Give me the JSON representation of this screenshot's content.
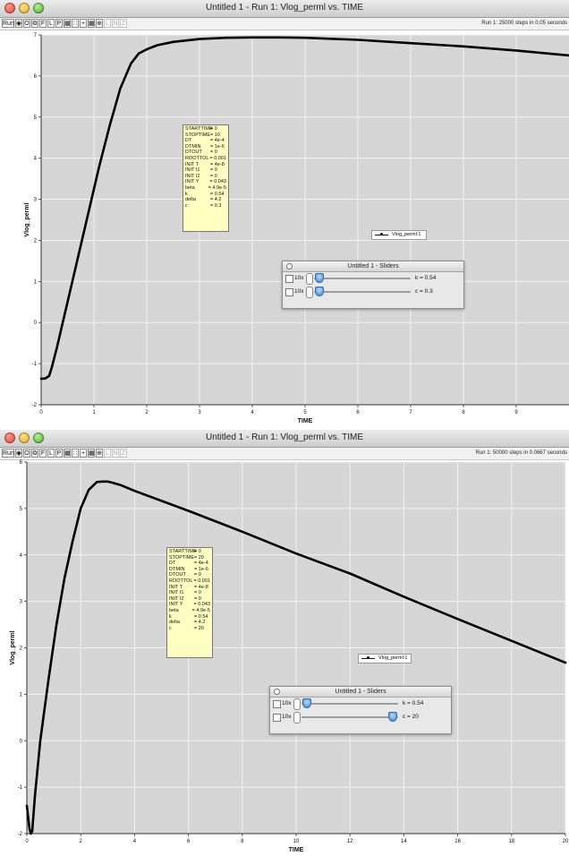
{
  "toolbar_buttons": [
    "Run",
    "",
    "O",
    "",
    "F",
    "L",
    "P",
    "",
    "",
    "",
    "",
    "",
    "",
    "",
    ""
  ],
  "windows": [
    {
      "title": "Untitled 1 - Run 1: Vlog_perml vs. TIME",
      "run_info": "Run 1: 25000 steps in 0.05 seconds",
      "params": [
        [
          "STARTTIME",
          "= 0"
        ],
        [
          "STOPTIME",
          "= 10"
        ],
        [
          "DT",
          "= 4e-4"
        ],
        [
          "DTMIN",
          "= 1e-6"
        ],
        [
          "DTOUT",
          "= 0"
        ],
        [
          "ROOTTOL",
          "= 0.001"
        ],
        [
          "INIT T",
          "= 4e-8"
        ],
        [
          "INIT I1",
          "= 0"
        ],
        [
          "INIT I2",
          "= 0"
        ],
        [
          "INIT Y",
          "= 0.043"
        ],
        [
          "beta",
          "= 4.9e-5"
        ],
        [
          "k",
          "= 0.54"
        ],
        [
          "delta",
          "= 4.2"
        ],
        [
          "c",
          "= 0.3"
        ]
      ],
      "legend": "Vlog_perml:1",
      "sliders": {
        "title": "Untitled 1 - Sliders",
        "rows": [
          {
            "multiplier": "10x",
            "label": "k = 0.54",
            "position": 0.06
          },
          {
            "multiplier": "10x",
            "label": "c = 0.3",
            "position": 0.06
          }
        ]
      }
    },
    {
      "title": "Untitled 1 - Run 1: Vlog_perml vs. TIME",
      "run_info": "Run 1: 50000 steps in 0.0667 seconds",
      "params": [
        [
          "STARTTIME",
          "= 0"
        ],
        [
          "STOPTIME",
          "= 20"
        ],
        [
          "DT",
          "= 4e-4"
        ],
        [
          "DTMIN",
          "= 1e-6"
        ],
        [
          "DTOUT",
          "= 0"
        ],
        [
          "ROOTTOL",
          "= 0.001"
        ],
        [
          "INIT T",
          "= 4e-8"
        ],
        [
          "INIT I1",
          "= 0"
        ],
        [
          "INIT I2",
          "= 0"
        ],
        [
          "INIT Y",
          "= 0.043"
        ],
        [
          "beta",
          "= 4.9e-5"
        ],
        [
          "k",
          "= 0.54"
        ],
        [
          "delta",
          "= 4.2"
        ],
        [
          "c",
          "= 20"
        ]
      ],
      "legend": "Vlog_perml:1",
      "sliders": {
        "title": "Untitled 1 - Sliders",
        "rows": [
          {
            "multiplier": "10x",
            "label": "k = 0.54",
            "position": 0.06
          },
          {
            "multiplier": "10x",
            "label": "c = 20",
            "position": 0.94
          }
        ]
      }
    }
  ],
  "chart_data": [
    {
      "type": "line",
      "xlabel": "TIME",
      "ylabel": "Vlog_perml",
      "xlim": [
        0,
        10
      ],
      "ylim": [
        -2,
        7
      ],
      "xticks": [
        0,
        1,
        2,
        3,
        4,
        5,
        6,
        7,
        8,
        9
      ],
      "yticks": [
        -2,
        -1,
        0,
        1,
        2,
        3,
        4,
        5,
        6,
        7
      ],
      "grid": true,
      "legend_position": "center-right",
      "series": [
        {
          "name": "Vlog_perml:1",
          "x": [
            0,
            0.08,
            0.15,
            0.2,
            0.3,
            0.5,
            0.7,
            0.9,
            1.1,
            1.3,
            1.5,
            1.7,
            1.85,
            2.0,
            2.2,
            2.5,
            3.0,
            3.5,
            4.0,
            4.5,
            5.0,
            6.0,
            7.0,
            8.0,
            9.0,
            10.0
          ],
          "y": [
            -1.37,
            -1.36,
            -1.3,
            -1.1,
            -0.6,
            0.5,
            1.6,
            2.7,
            3.8,
            4.8,
            5.7,
            6.3,
            6.55,
            6.65,
            6.75,
            6.83,
            6.9,
            6.93,
            6.94,
            6.94,
            6.93,
            6.88,
            6.8,
            6.72,
            6.62,
            6.5
          ]
        }
      ]
    },
    {
      "type": "line",
      "xlabel": "TIME",
      "ylabel": "Vlog_perml",
      "xlim": [
        0,
        20
      ],
      "ylim": [
        -2,
        6
      ],
      "xticks": [
        0,
        2,
        4,
        6,
        8,
        10,
        12,
        14,
        16,
        18,
        20
      ],
      "yticks": [
        -2,
        -1,
        0,
        1,
        2,
        3,
        4,
        5,
        6
      ],
      "grid": true,
      "legend_position": "center-right",
      "series": [
        {
          "name": "Vlog_perml:1",
          "x": [
            0,
            0.1,
            0.15,
            0.2,
            0.3,
            0.5,
            0.8,
            1.1,
            1.4,
            1.7,
            2.0,
            2.3,
            2.6,
            2.8,
            3.0,
            3.2,
            3.5,
            4,
            6,
            8,
            10,
            12,
            14,
            16,
            18,
            20
          ],
          "y": [
            -1.4,
            -1.9,
            -2.0,
            -1.95,
            -1.2,
            0,
            1.3,
            2.5,
            3.5,
            4.3,
            5.0,
            5.4,
            5.57,
            5.58,
            5.58,
            5.55,
            5.5,
            5.38,
            4.95,
            4.5,
            4.03,
            3.6,
            3.1,
            2.62,
            2.15,
            1.68
          ]
        }
      ]
    }
  ]
}
